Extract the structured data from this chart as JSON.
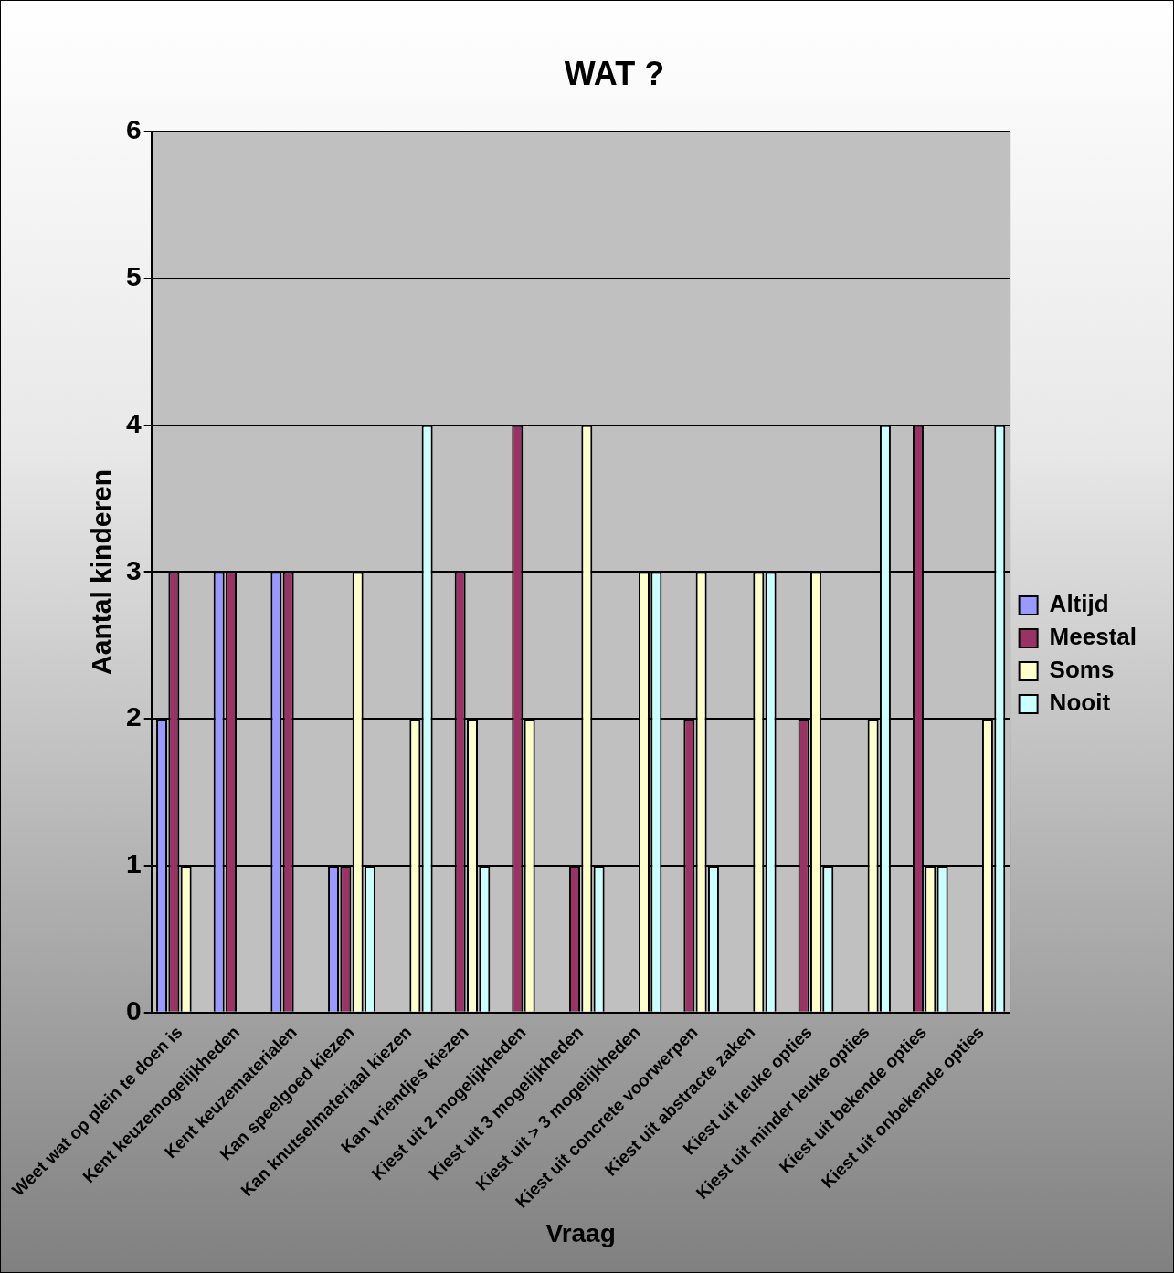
{
  "chart_data": {
    "type": "bar",
    "title": "WAT ?",
    "xlabel": "Vraag",
    "ylabel": "Aantal kinderen",
    "categories": [
      "Weet wat op plein te doen is",
      "Kent keuzemogelijkheden",
      "Kent keuzematerialen",
      "Kan speelgoed kiezen",
      "Kan knutselmateriaal kiezen",
      "Kan vriendjes kiezen",
      "Kiest uit 2 mogelijkheden",
      "Kiest uit 3 mogelijkheden",
      "Kiest uit > 3 mogelijkheden",
      "Kiest uit concrete voorwerpen",
      "Kiest uit abstracte zaken",
      "Kiest uit leuke opties",
      "Kiest uit minder leuke opties",
      "Kiest uit bekende opties",
      "Kiest uit onbekende opties"
    ],
    "series": [
      {
        "name": "Altijd",
        "color": "#9999ff",
        "values": [
          2,
          3,
          3,
          1,
          0,
          0,
          0,
          0,
          0,
          0,
          0,
          0,
          0,
          0,
          0
        ]
      },
      {
        "name": "Meestal",
        "color": "#993366",
        "values": [
          3,
          3,
          3,
          1,
          0,
          3,
          4,
          1,
          0,
          2,
          0,
          2,
          0,
          4,
          0
        ]
      },
      {
        "name": "Soms",
        "color": "#ffffcc",
        "values": [
          1,
          0,
          0,
          3,
          2,
          2,
          2,
          4,
          3,
          3,
          3,
          3,
          2,
          1,
          2
        ]
      },
      {
        "name": "Nooit",
        "color": "#ccffff",
        "values": [
          0,
          0,
          0,
          1,
          4,
          1,
          0,
          1,
          3,
          1,
          3,
          1,
          4,
          1,
          4
        ]
      }
    ],
    "ylim": [
      0,
      6
    ],
    "yticks": [
      0,
      1,
      2,
      3,
      4,
      5,
      6
    ],
    "grid": "y",
    "legend": "right"
  }
}
